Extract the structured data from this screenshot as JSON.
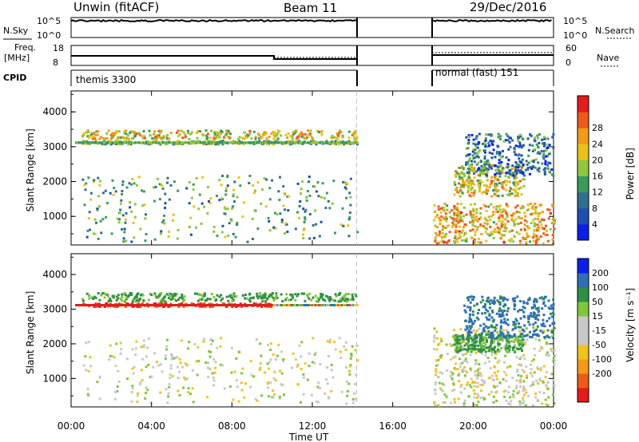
{
  "header": {
    "station": "Unwin (fitACF)",
    "beam": "Beam 11",
    "date": "29/Dec/2016"
  },
  "strip": {
    "nsky_label": "N.Sky",
    "nsearch_label": "N.Search",
    "freq_label": "Freq.",
    "freq_unit": "[MHz]",
    "nave_label": "Nave",
    "cpid_label": "CPID",
    "noise_ticks": [
      "10^5",
      "10^0"
    ],
    "freq_ticks": [
      "18",
      "8"
    ],
    "nave_ticks": [
      "60",
      "0"
    ],
    "cpid_left": "themis 3300",
    "cpid_right": "normal (fast) 151"
  },
  "colors": {
    "frame": "#000000",
    "power_scale": [
      "#0b1fe6",
      "#1d4eb0",
      "#2f6f8f",
      "#3c9a5a",
      "#8ec63e",
      "#e8c21b",
      "#f39a18",
      "#ee5a1b",
      "#e31c1c"
    ],
    "velocity_scale": [
      "#e31c1c",
      "#ee5a1b",
      "#f39a18",
      "#f0c31f",
      "#c8c8c8",
      "#c8c8c8",
      "#7fc63b",
      "#2f8f46",
      "#2f6fb5",
      "#0b1fe6"
    ]
  },
  "chart_data": [
    {
      "type": "heatmap",
      "name": "power",
      "xlabel": "",
      "ylabel": "Slant Range [km]",
      "x_ticks": [
        "00:00",
        "04:00",
        "08:00",
        "12:00",
        "16:00",
        "20:00",
        "00:00"
      ],
      "xlim_hours": [
        0,
        24
      ],
      "y_ticks": [
        1000,
        2000,
        3000,
        4000
      ],
      "ylim": [
        180,
        4600
      ],
      "colorbar_label": "Power [dB]",
      "colorbar_ticks": [
        "4",
        "8",
        "12",
        "16",
        "20",
        "24",
        "28"
      ],
      "colorbar_range": [
        0,
        30
      ],
      "data_gaps_hours": [
        [
          14.2,
          18.0
        ]
      ],
      "echo_regions": [
        {
          "t": [
            0.5,
            14.2
          ],
          "range": [
            3100,
            3200
          ],
          "level": 14
        },
        {
          "t": [
            0.5,
            14.2
          ],
          "range": [
            3250,
            3500
          ],
          "level": 18
        },
        {
          "t": [
            0.5,
            14.2
          ],
          "range": [
            300,
            2200
          ],
          "level": 12
        },
        {
          "t": [
            18.0,
            24.0
          ],
          "range": [
            250,
            1400
          ],
          "level": 20
        },
        {
          "t": [
            19.0,
            22.5
          ],
          "range": [
            1600,
            2500
          ],
          "level": 18
        },
        {
          "t": [
            19.5,
            24.0
          ],
          "range": [
            2200,
            3400
          ],
          "level": 8
        }
      ]
    },
    {
      "type": "heatmap",
      "name": "velocity",
      "xlabel": "Time UT",
      "ylabel": "Slant Range [km]",
      "x_ticks": [
        "00:00",
        "04:00",
        "08:00",
        "12:00",
        "16:00",
        "20:00",
        "00:00"
      ],
      "xlim_hours": [
        0,
        24
      ],
      "y_ticks": [
        1000,
        2000,
        3000,
        4000
      ],
      "ylim": [
        180,
        4600
      ],
      "colorbar_label": "Velocity [m s⁻¹]",
      "colorbar_ticks": [
        "200",
        "100",
        "50",
        "15",
        "-15",
        "-50",
        "-100",
        "-200"
      ],
      "colorbar_range": [
        -250,
        250
      ],
      "data_gaps_hours": [
        [
          14.2,
          18.0
        ]
      ],
      "echo_regions": [
        {
          "t": [
            0.5,
            10.0
          ],
          "range": [
            3100,
            3200
          ],
          "level": -200
        },
        {
          "t": [
            0.5,
            14.2
          ],
          "range": [
            3250,
            3500
          ],
          "level": 60
        },
        {
          "t": [
            0.5,
            14.2
          ],
          "range": [
            300,
            2200
          ],
          "level": 0
        },
        {
          "t": [
            18.0,
            24.0
          ],
          "range": [
            250,
            2500
          ],
          "level": 0
        },
        {
          "t": [
            19.0,
            22.5
          ],
          "range": [
            1800,
            2300
          ],
          "level": 60
        },
        {
          "t": [
            19.5,
            24.0
          ],
          "range": [
            2200,
            3400
          ],
          "level": 120
        }
      ]
    }
  ]
}
